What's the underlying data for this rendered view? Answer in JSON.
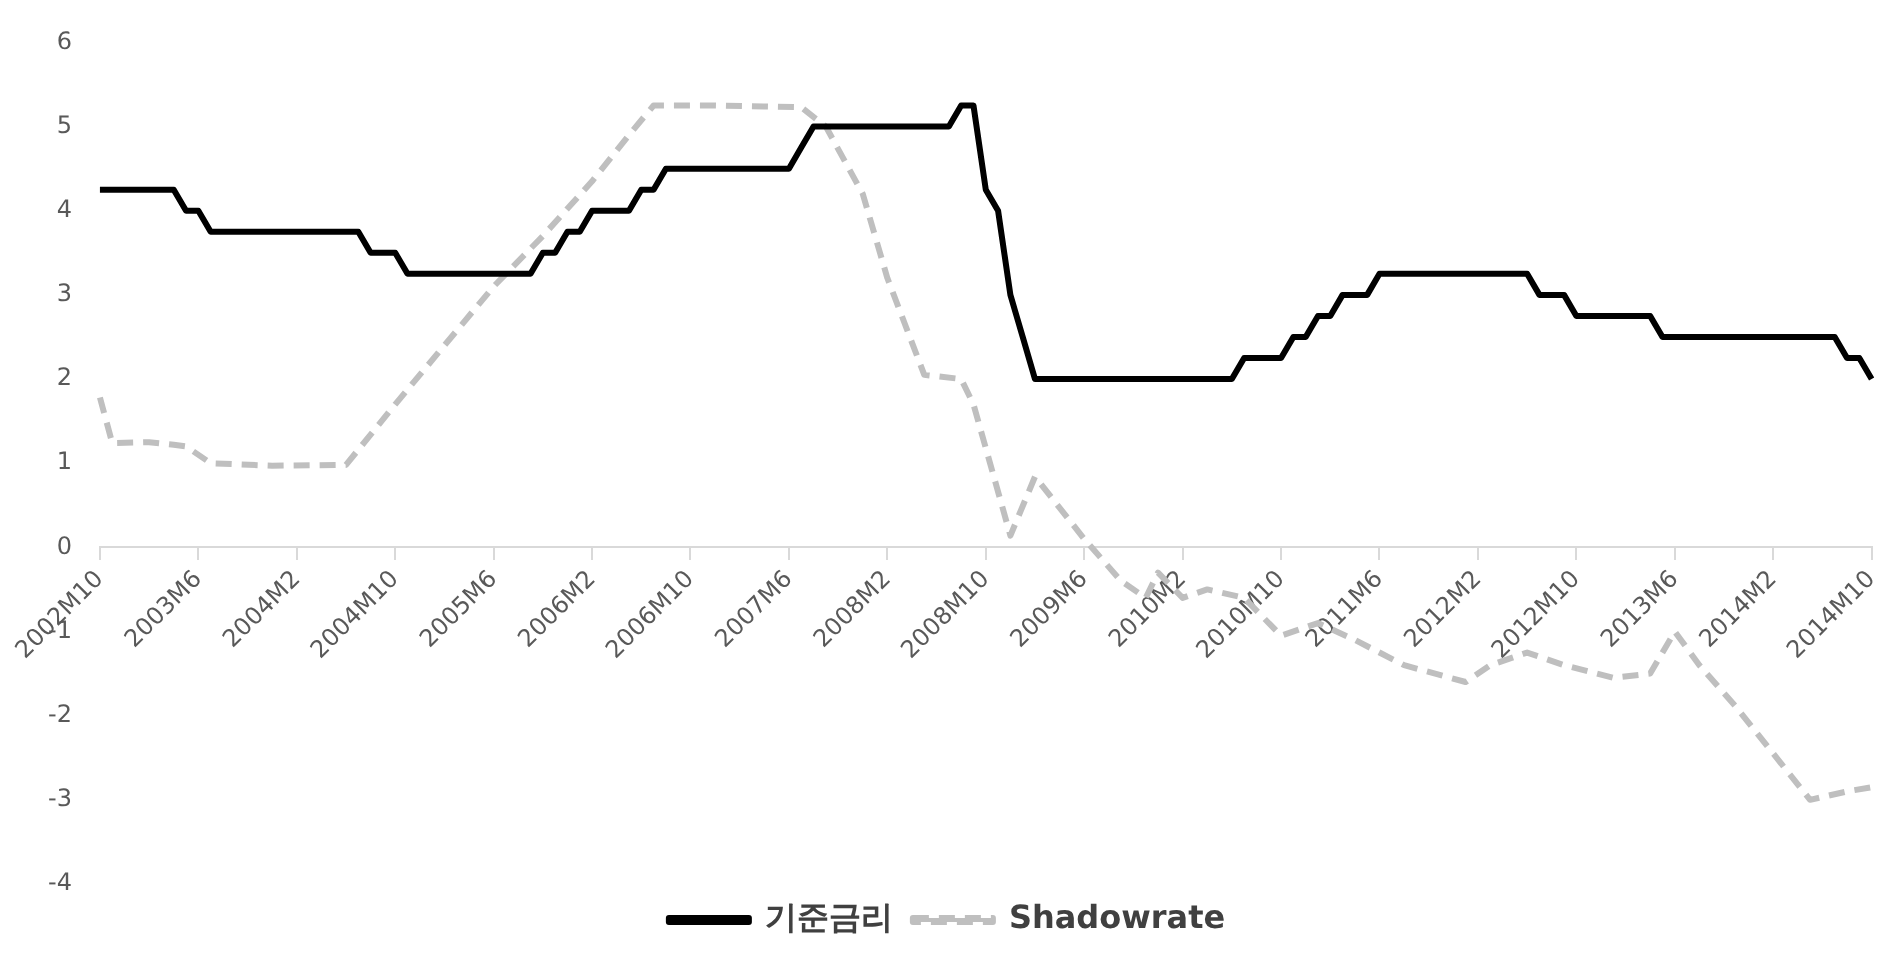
{
  "chart_data": {
    "type": "line",
    "categories": [
      "2002M10",
      null,
      null,
      null,
      null,
      null,
      null,
      null,
      "2003M6",
      null,
      null,
      null,
      null,
      null,
      null,
      null,
      "2004M2",
      null,
      null,
      null,
      null,
      null,
      null,
      null,
      "2004M10",
      null,
      null,
      null,
      null,
      null,
      null,
      null,
      "2005M6",
      null,
      null,
      null,
      null,
      null,
      null,
      null,
      "2006M2",
      null,
      null,
      null,
      null,
      null,
      null,
      null,
      "2006M10",
      null,
      null,
      null,
      null,
      null,
      null,
      null,
      "2007M6",
      null,
      null,
      null,
      null,
      null,
      null,
      null,
      "2008M2",
      null,
      null,
      null,
      null,
      null,
      null,
      null,
      "2008M10",
      null,
      null,
      null,
      null,
      null,
      null,
      null,
      "2009M6",
      null,
      null,
      null,
      null,
      null,
      null,
      null,
      "2010M2",
      null,
      null,
      null,
      null,
      null,
      null,
      null,
      "2010M10",
      null,
      null,
      null,
      null,
      null,
      null,
      null,
      "2011M6",
      null,
      null,
      null,
      null,
      null,
      null,
      null,
      "2012M2",
      null,
      null,
      null,
      null,
      null,
      null,
      null,
      "2012M10",
      null,
      null,
      null,
      null,
      null,
      null,
      null,
      "2013M6",
      null,
      null,
      null,
      null,
      null,
      null,
      null,
      "2014M2",
      null,
      null,
      null,
      null,
      null,
      null,
      null,
      "2014M10"
    ],
    "series": [
      {
        "name": "기준금리",
        "color": "#000000",
        "line_style": "solid",
        "values": [
          4.25,
          4.25,
          4.25,
          4.25,
          4.25,
          4.25,
          4.25,
          4,
          4,
          3.75,
          3.75,
          3.75,
          3.75,
          3.75,
          3.75,
          3.75,
          3.75,
          3.75,
          3.75,
          3.75,
          3.75,
          3.75,
          3.5,
          3.5,
          3.5,
          3.25,
          3.25,
          3.25,
          3.25,
          3.25,
          3.25,
          3.25,
          3.25,
          3.25,
          3.25,
          3.25,
          3.5,
          3.5,
          3.75,
          3.75,
          4,
          4,
          4,
          4,
          4.25,
          4.25,
          4.5,
          4.5,
          4.5,
          4.5,
          4.5,
          4.5,
          4.5,
          4.5,
          4.5,
          4.5,
          4.5,
          4.75,
          5,
          5,
          5,
          5,
          5,
          5,
          5,
          5,
          5,
          5,
          5,
          5,
          5.25,
          5.25,
          4.25,
          4,
          3,
          2.5,
          2,
          2,
          2,
          2,
          2,
          2,
          2,
          2,
          2,
          2,
          2,
          2,
          2,
          2,
          2,
          2,
          2,
          2.25,
          2.25,
          2.25,
          2.25,
          2.5,
          2.5,
          2.75,
          2.75,
          3,
          3,
          3,
          3.25,
          3.25,
          3.25,
          3.25,
          3.25,
          3.25,
          3.25,
          3.25,
          3.25,
          3.25,
          3.25,
          3.25,
          3.25,
          3,
          3,
          3,
          2.75,
          2.75,
          2.75,
          2.75,
          2.75,
          2.75,
          2.75,
          2.5,
          2.5,
          2.5,
          2.5,
          2.5,
          2.5,
          2.5,
          2.5,
          2.5,
          2.5,
          2.5,
          2.5,
          2.5,
          2.5,
          2.5,
          2.25,
          2.25,
          2
        ]
      },
      {
        "name": "Shadowrate",
        "color": "#bfbfbf",
        "line_style": "dashed",
        "values": [
          1.78,
          1.24,
          null,
          null,
          1.25,
          null,
          1.22,
          1.2,
          null,
          1.0,
          null,
          null,
          null,
          null,
          0.97,
          null,
          null,
          null,
          null,
          null,
          0.98,
          null,
          null,
          null,
          1.7,
          null,
          null,
          null,
          2.4,
          null,
          null,
          null,
          3.1,
          null,
          null,
          null,
          3.7,
          null,
          null,
          null,
          4.35,
          null,
          null,
          4.9,
          null,
          5.25,
          null,
          null,
          null,
          null,
          5.25,
          null,
          null,
          null,
          null,
          null,
          null,
          5.23,
          null,
          5.0,
          null,
          null,
          4.2,
          null,
          3.2,
          null,
          null,
          2.05,
          null,
          null,
          2.0,
          1.7,
          null,
          null,
          0.14,
          null,
          0.84,
          null,
          null,
          null,
          0.1,
          null,
          null,
          -0.4,
          null,
          -0.6,
          -0.3,
          null,
          -0.6,
          null,
          -0.5,
          null,
          null,
          -0.6,
          null,
          null,
          -1.05,
          null,
          null,
          -0.9,
          null,
          null,
          -1.1,
          null,
          null,
          null,
          -1.4,
          null,
          null,
          null,
          null,
          -1.6,
          null,
          -1.4,
          null,
          null,
          -1.25,
          null,
          null,
          -1.4,
          null,
          null,
          null,
          -1.55,
          null,
          null,
          -1.5,
          null,
          -1.0,
          null,
          -1.4,
          null,
          null,
          -1.9,
          null,
          null,
          -2.45,
          null,
          null,
          -3.0,
          null,
          null,
          -2.9,
          null,
          -2.85
        ]
      }
    ],
    "ylim": [
      -4,
      6
    ],
    "yticks": [
      -4,
      -3,
      -2,
      -1,
      0,
      1,
      2,
      3,
      4,
      5,
      6
    ],
    "legend": "bottom",
    "marker": "none"
  }
}
